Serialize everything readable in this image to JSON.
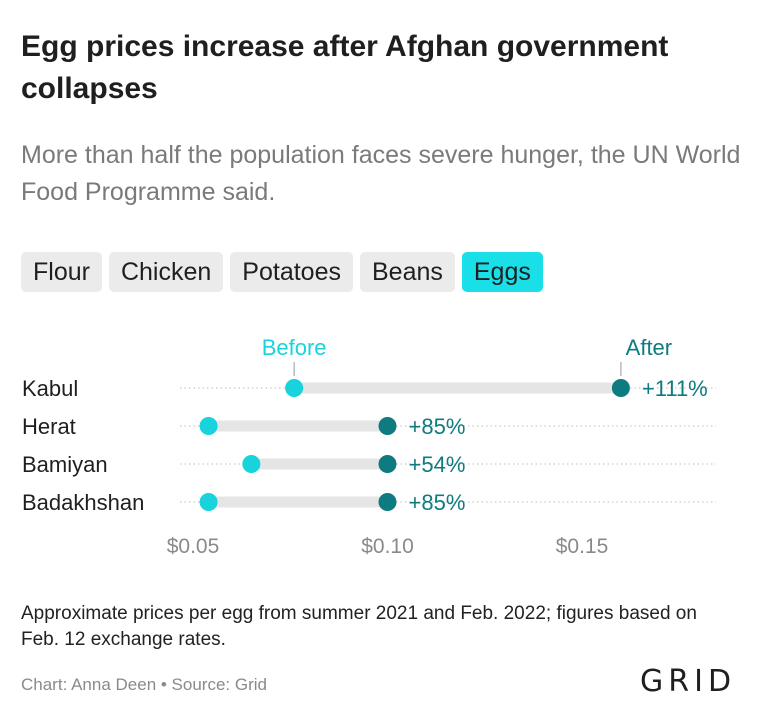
{
  "header": {
    "title": "Egg prices increase after Afghan government collapses",
    "subtitle": "More than half the population faces severe hunger, the UN World Food Programme said."
  },
  "tabs": [
    {
      "label": "Flour",
      "active": false
    },
    {
      "label": "Chicken",
      "active": false
    },
    {
      "label": "Potatoes",
      "active": false
    },
    {
      "label": "Beans",
      "active": false
    },
    {
      "label": "Eggs",
      "active": true
    }
  ],
  "colors": {
    "before": "#19d3dc",
    "after": "#0e7b80",
    "bar": "#e5e5e5",
    "tab_active": "#19dfe9",
    "tab_inactive": "#ebebeb"
  },
  "chart_data": {
    "type": "dumbbell",
    "categories": [
      "Kabul",
      "Herat",
      "Bamiyan",
      "Badakhshan"
    ],
    "series": [
      {
        "name": "Before",
        "values": [
          0.076,
          0.054,
          0.065,
          0.054
        ]
      },
      {
        "name": "After",
        "values": [
          0.16,
          0.1,
          0.1,
          0.1
        ]
      }
    ],
    "change_labels": [
      "+111%",
      "+85%",
      "+54%",
      "+85%"
    ],
    "xticks": [
      0.05,
      0.1,
      0.15
    ],
    "xtick_labels": [
      "$0.05",
      "$0.10",
      "$0.15"
    ],
    "xlim": [
      0.05,
      0.15
    ],
    "grid": "dotted-horizontal"
  },
  "footer": {
    "note": "Approximate prices per egg from summer 2021 and Feb. 2022; figures based on Feb. 12 exchange rates.",
    "credit": "Chart: Anna Deen • Source: Grid",
    "logo": "GRID"
  }
}
